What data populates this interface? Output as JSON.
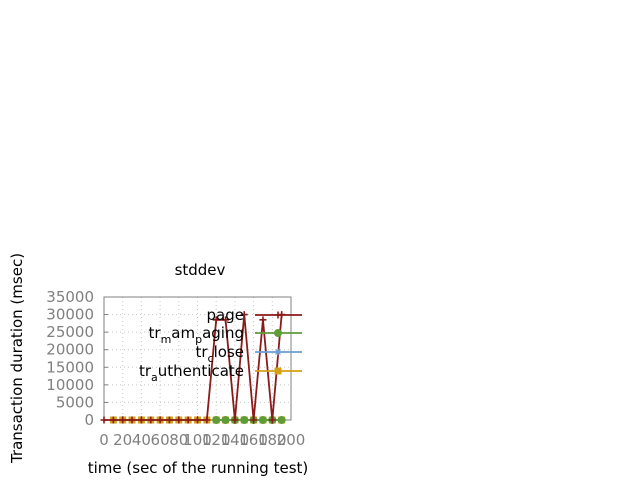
{
  "chart_data": {
    "type": "line",
    "title": "stddev",
    "xlabel": "time (sec of the running test)",
    "ylabel": "Transaction duration (msec)",
    "xlim": [
      0,
      200
    ],
    "ylim": [
      0,
      35000
    ],
    "grid": true,
    "legend_position": "top-right",
    "x_ticks": [
      "0",
      "20",
      "40",
      "60",
      "80",
      "100",
      "120",
      "140",
      "160",
      "180",
      "200"
    ],
    "y_ticks": [
      "0",
      "5000",
      "10000",
      "15000",
      "20000",
      "25000",
      "30000",
      "35000"
    ],
    "series": [
      {
        "name": "page",
        "legend": {
          "pre": "page",
          "parts": []
        },
        "color": "#8b1a1a",
        "marker": "plus",
        "x": [
          0,
          10,
          20,
          30,
          40,
          50,
          60,
          70,
          80,
          90,
          100,
          110,
          120,
          130,
          140,
          150,
          160,
          170,
          180,
          190
        ],
        "y": [
          0,
          0,
          0,
          0,
          0,
          0,
          0,
          0,
          0,
          0,
          0,
          0,
          28500,
          28500,
          0,
          30000,
          0,
          28500,
          0,
          30000
        ]
      },
      {
        "name": "tr_mam_paging",
        "legend": {
          "pre": "tr",
          "parts": [
            {
              "sub": "m",
              "txt": "am"
            },
            {
              "sub": "p",
              "txt": "aging"
            }
          ]
        },
        "color": "#5e9c36",
        "marker": "circle",
        "x": [
          120,
          130,
          140,
          150,
          160,
          170,
          180,
          190
        ],
        "y": [
          0,
          0,
          0,
          0,
          0,
          0,
          0,
          0
        ]
      },
      {
        "name": "tr_close",
        "legend": {
          "pre": "tr",
          "parts": [
            {
              "sub": "c",
              "txt": "lose"
            }
          ]
        },
        "color": "#6a9fd3",
        "marker": "star",
        "x": [
          120,
          130,
          140,
          150,
          160,
          170,
          180,
          190
        ],
        "y": [
          0,
          0,
          0,
          0,
          0,
          0,
          0,
          0
        ]
      },
      {
        "name": "tr_authenticate",
        "legend": {
          "pre": "tr",
          "parts": [
            {
              "sub": "a",
              "txt": "uthenticate"
            }
          ]
        },
        "color": "#d4a017",
        "marker": "square",
        "x": [
          10,
          20,
          30,
          40,
          50,
          60,
          70,
          80,
          90,
          100,
          110,
          120,
          130,
          140,
          150,
          160,
          170,
          180,
          190
        ],
        "y": [
          0,
          0,
          0,
          0,
          0,
          0,
          0,
          0,
          0,
          0,
          0,
          0,
          0,
          0,
          0,
          0,
          0,
          0,
          0
        ]
      }
    ]
  }
}
